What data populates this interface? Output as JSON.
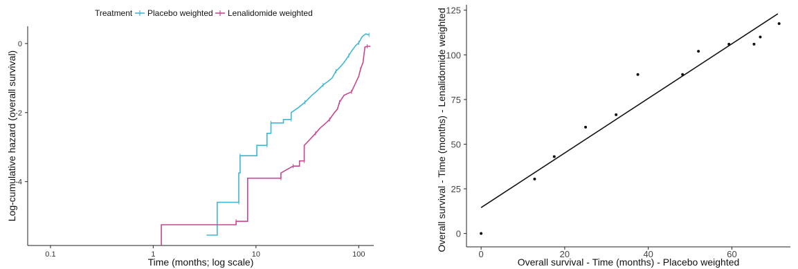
{
  "chart_data": [
    {
      "type": "line",
      "xlabel": "Time (months; log scale)",
      "ylabel": "Log-cumulative hazard (overall survival)",
      "x_scale": "log",
      "xlim": [
        0.06,
        140
      ],
      "ylim": [
        -5.85,
        0.5
      ],
      "x_ticks": [
        0.1,
        1,
        10,
        100
      ],
      "x_tick_labels": [
        "0.1",
        "1",
        "10",
        "100"
      ],
      "y_ticks": [
        0,
        -2,
        -4
      ],
      "y_tick_labels": [
        "0",
        "-2",
        "-4"
      ],
      "grid": false,
      "legend": {
        "title": "Treatment",
        "position": "top",
        "entries": [
          "Placebo weighted",
          "Lenalidomide weighted"
        ]
      },
      "series": [
        {
          "name": "Placebo weighted",
          "color": "#3fb6d3",
          "points": [
            [
              3.3,
              -5.55
            ],
            [
              4.2,
              -5.55
            ],
            [
              4.2,
              -4.6
            ],
            [
              6.8,
              -4.6
            ],
            [
              6.8,
              -3.75
            ],
            [
              7.0,
              -3.75
            ],
            [
              7.0,
              -3.25
            ],
            [
              10.2,
              -3.25
            ],
            [
              10.2,
              -2.95
            ],
            [
              12.8,
              -2.95
            ],
            [
              12.8,
              -2.6
            ],
            [
              14.0,
              -2.6
            ],
            [
              14.0,
              -2.3
            ],
            [
              18.5,
              -2.3
            ],
            [
              18.5,
              -2.2
            ],
            [
              22,
              -2.2
            ],
            [
              22,
              -2.0
            ],
            [
              26,
              -1.85
            ],
            [
              30,
              -1.7
            ],
            [
              35,
              -1.5
            ],
            [
              40,
              -1.35
            ],
            [
              45,
              -1.2
            ],
            [
              50,
              -1.1
            ],
            [
              55,
              -1.0
            ],
            [
              60,
              -0.8
            ],
            [
              65,
              -0.7
            ],
            [
              72,
              -0.55
            ],
            [
              80,
              -0.35
            ],
            [
              86,
              -0.2
            ],
            [
              94,
              -0.05
            ],
            [
              100,
              0.02
            ],
            [
              108,
              0.2
            ],
            [
              117,
              0.28
            ],
            [
              126,
              0.25
            ]
          ]
        },
        {
          "name": "Lenalidomide weighted",
          "color": "#c7468f",
          "points": [
            [
              1.2,
              -5.85
            ],
            [
              1.2,
              -5.25
            ],
            [
              6.4,
              -5.25
            ],
            [
              6.4,
              -5.15
            ],
            [
              8.3,
              -5.15
            ],
            [
              8.3,
              -3.9
            ],
            [
              17.5,
              -3.9
            ],
            [
              17.5,
              -3.75
            ],
            [
              20,
              -3.65
            ],
            [
              23,
              -3.55
            ],
            [
              26.5,
              -3.55
            ],
            [
              26.5,
              -3.4
            ],
            [
              29.5,
              -3.4
            ],
            [
              29.5,
              -2.95
            ],
            [
              33,
              -2.8
            ],
            [
              38,
              -2.6
            ],
            [
              42,
              -2.45
            ],
            [
              48,
              -2.3
            ],
            [
              52,
              -2.2
            ],
            [
              58,
              -2.0
            ],
            [
              62,
              -1.9
            ],
            [
              65,
              -1.7
            ],
            [
              72,
              -1.5
            ],
            [
              78,
              -1.45
            ],
            [
              85,
              -1.4
            ],
            [
              93,
              -1.15
            ],
            [
              100,
              -0.95
            ],
            [
              104,
              -0.75
            ],
            [
              110,
              -0.55
            ],
            [
              115,
              -0.1
            ],
            [
              121,
              -0.08
            ],
            [
              130,
              -0.08
            ]
          ]
        }
      ]
    },
    {
      "type": "scatter",
      "xlabel": "Overall survival - Time (months) - Placebo weighted",
      "ylabel": "Overall survival - Time (months) - Lenalidomide weighted",
      "xlim": [
        -3.5,
        74
      ],
      "ylim": [
        -7.5,
        128
      ],
      "x_ticks": [
        0,
        20,
        40,
        60
      ],
      "x_tick_labels": [
        "0",
        "20",
        "40",
        "60"
      ],
      "y_ticks": [
        0,
        25,
        50,
        75,
        100,
        125
      ],
      "y_tick_labels": [
        "0",
        "25",
        "50",
        "75",
        "100",
        "125"
      ],
      "grid": false,
      "points": [
        [
          0,
          0
        ],
        [
          12.8,
          30.5
        ],
        [
          17.5,
          43
        ],
        [
          25,
          59.5
        ],
        [
          32.3,
          66.5
        ],
        [
          37.5,
          89
        ],
        [
          48.2,
          89
        ],
        [
          52,
          102
        ],
        [
          59.3,
          106
        ],
        [
          65.3,
          106
        ],
        [
          66.8,
          110
        ],
        [
          71.3,
          117.5
        ]
      ],
      "fit_line": [
        [
          0,
          14.5
        ],
        [
          71,
          123
        ]
      ]
    }
  ]
}
